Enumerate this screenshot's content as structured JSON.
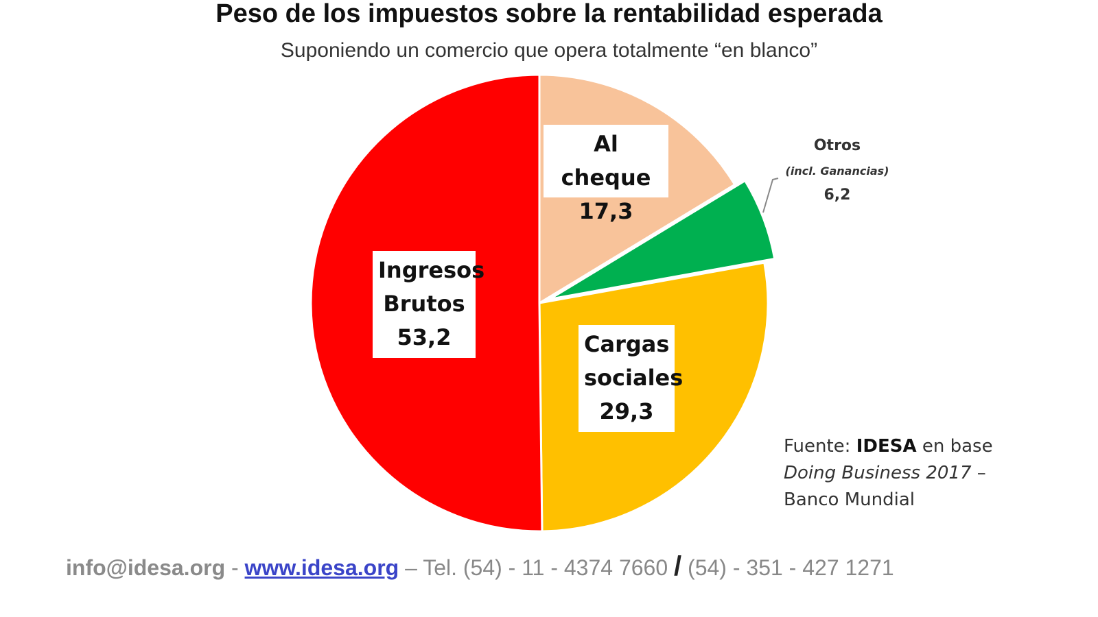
{
  "title": "Peso de los impuestos sobre la rentabilidad esperada",
  "subtitle": "Suponiendo un comercio que opera totalmente “en blanco”",
  "chart_data": {
    "type": "pie",
    "slices": [
      {
        "label_lines": [
          "Ingresos",
          "Brutos"
        ],
        "value": 53.2,
        "value_text": "53,2",
        "color": "#ff0000"
      },
      {
        "label_lines": [
          "Al cheque"
        ],
        "value": 17.3,
        "value_text": "17,3",
        "color": "#f8c39a"
      },
      {
        "label_lines": [
          "Otros"
        ],
        "sublabel": "(incl. Ganancias)",
        "value": 6.2,
        "value_text": "6,2",
        "color": "#00b050"
      },
      {
        "label_lines": [
          "Cargas",
          "sociales"
        ],
        "value": 29.3,
        "value_text": "29,3",
        "color": "#ffc000"
      }
    ]
  },
  "source": {
    "prefix": "Fuente: ",
    "org": "IDESA",
    "mid": " en base ",
    "italic": "Doing Business 2017",
    "suffix": " – Banco Mundial"
  },
  "footer": {
    "email": "info@idesa.org",
    "sep1": " - ",
    "website": "www.idesa.org",
    "tel_part1": " – Tel. (54) - 11 - 4374 7660 ",
    "slash": "/",
    "tel_part2": " (54) - 351 - 427 1271"
  }
}
